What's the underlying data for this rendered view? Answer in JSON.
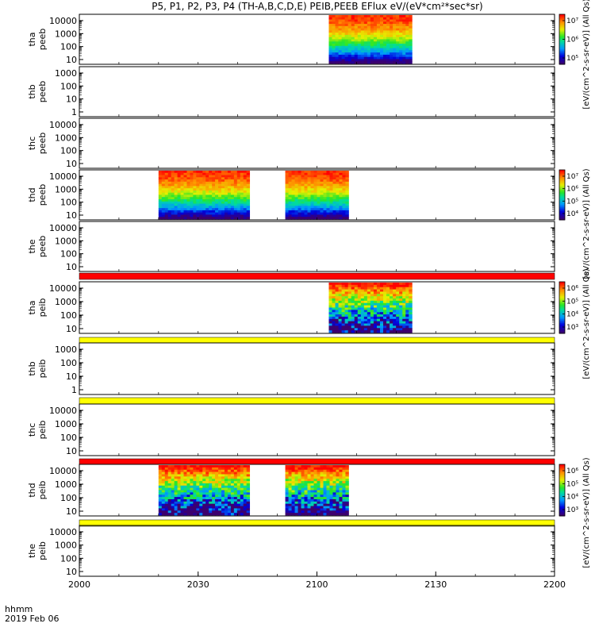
{
  "title": "P5, P1, P2, P3, P4 (TH-A,B,C,D,E) PEIB,PEEB EFlux eV/(eV*cm²*sec*sr)",
  "footer": {
    "time_label": "hhmm",
    "date_label": "2019 Feb 06"
  },
  "colorbar_labels": {
    "top_partial": "[eV/(cm^2-s-sr-eV)] (All Qs)",
    "electron_overlap": "[eV/(cm^2-s-sr-eV)] (All Qs)",
    "ion_upper": "[eV/(cm^2-s-sr-eV)] (All Qs)",
    "ion_lower": "[eV/(cm^2-s-sr-eV)] (All Qs)"
  },
  "chart_data": {
    "type": "heatmap",
    "x_axis": {
      "range": [
        "2000",
        "2200"
      ],
      "tick_labels": [
        "2000",
        "2030",
        "2100",
        "2130",
        "2200"
      ]
    },
    "panels": [
      {
        "probe": "tha",
        "product": "peeb",
        "ylabel": [
          "tha",
          "peeb"
        ],
        "yticks": [
          "10",
          "100",
          "1000",
          "10000"
        ],
        "colorbar": "A",
        "data_intervals": [
          {
            "start": "2103",
            "end": "2124"
          }
        ]
      },
      {
        "probe": "thb",
        "product": "peeb",
        "ylabel": [
          "thb",
          "peeb"
        ],
        "yticks": [
          "1",
          "10",
          "100",
          "1000"
        ],
        "colorbar": null,
        "data_intervals": []
      },
      {
        "probe": "thc",
        "product": "peeb",
        "ylabel": [
          "thc",
          "peeb"
        ],
        "yticks": [
          "10",
          "100",
          "1000",
          "10000"
        ],
        "colorbar": null,
        "data_intervals": []
      },
      {
        "probe": "thd",
        "product": "peeb",
        "ylabel": [
          "thd",
          "peeb"
        ],
        "yticks": [
          "10",
          "100",
          "1000",
          "10000"
        ],
        "colorbar": "B",
        "data_intervals": [
          {
            "start": "2020",
            "end": "2043"
          },
          {
            "start": "2052",
            "end": "2108"
          }
        ]
      },
      {
        "probe": "the",
        "product": "peeb",
        "ylabel": [
          "the",
          "peeb"
        ],
        "yticks": [
          "10",
          "100",
          "1000",
          "10000"
        ],
        "colorbar": null,
        "data_intervals": []
      },
      {
        "probe": "tha",
        "product": "peib",
        "ylabel": [
          "tha",
          "peib"
        ],
        "yticks": [
          "10",
          "100",
          "1000",
          "10000"
        ],
        "colorbar": "C",
        "data_intervals": [
          {
            "start": "2103",
            "end": "2124"
          }
        ]
      },
      {
        "probe": "thb",
        "product": "peib",
        "ylabel": [
          "thb",
          "peib"
        ],
        "yticks": [
          "1",
          "10",
          "100",
          "1000"
        ],
        "colorbar": null,
        "data_intervals": []
      },
      {
        "probe": "thc",
        "product": "peib",
        "ylabel": [
          "thc",
          "peib"
        ],
        "yticks": [
          "10",
          "100",
          "1000",
          "10000"
        ],
        "colorbar": null,
        "data_intervals": []
      },
      {
        "probe": "thd",
        "product": "peib",
        "ylabel": [
          "thd",
          "peib"
        ],
        "yticks": [
          "10",
          "100",
          "1000",
          "10000"
        ],
        "colorbar": "D",
        "data_intervals": [
          {
            "start": "2020",
            "end": "2043"
          },
          {
            "start": "2052",
            "end": "2108"
          }
        ]
      },
      {
        "probe": "the",
        "product": "peib",
        "ylabel": [
          "the",
          "peib"
        ],
        "yticks": [
          "10",
          "100",
          "1000",
          "10000"
        ],
        "colorbar": null,
        "data_intervals": []
      }
    ],
    "colorbars": {
      "A": {
        "ticks": [
          "10⁵",
          "10⁶",
          "10⁷"
        ]
      },
      "B": {
        "ticks": [
          "10⁴",
          "10⁵",
          "10⁶",
          "10⁷"
        ]
      },
      "C": {
        "ticks": [
          "10³",
          "10⁴",
          "10⁵",
          "10⁶"
        ]
      },
      "D": {
        "ticks": [
          "10³",
          "10⁴",
          "10⁵",
          "10⁶"
        ]
      }
    },
    "flag_bars": [
      {
        "after_panel": 4,
        "color": "#ff0000"
      },
      {
        "after_panel": 5,
        "color": "#ffff00"
      },
      {
        "after_panel": 6,
        "color": "#ffff00"
      },
      {
        "after_panel": 7,
        "color": "#ff0000"
      },
      {
        "after_panel": 8,
        "color": "#ffff00"
      }
    ]
  }
}
